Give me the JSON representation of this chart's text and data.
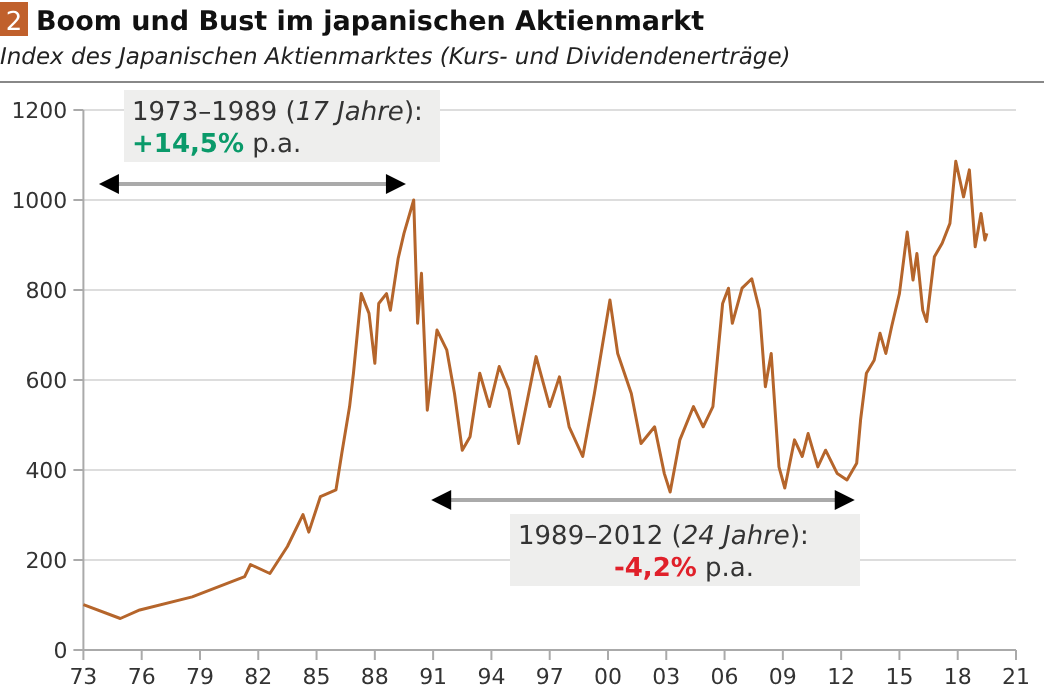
{
  "chart_data": {
    "type": "line",
    "title": "2 Boom und Bust im japanischen Aktienmarkt",
    "subtitle": "Index des Japanischen Aktienmarktes (Kurs- und Dividendenerträge)",
    "x": [
      1973.0,
      1974.9,
      1975.9,
      1978.6,
      1981.3,
      1981.6,
      1982.6,
      1983.5,
      1984.3,
      1984.6,
      1985.2,
      1986.0,
      1986.3,
      1986.7,
      1986.9,
      1987.3,
      1987.7,
      1988.0,
      1988.2,
      1988.6,
      1988.8,
      1989.2,
      1989.5,
      1990.0,
      1990.2,
      1990.4,
      1990.7,
      1991.2,
      1991.7,
      1992.1,
      1992.5,
      1992.9,
      1993.4,
      1993.9,
      1994.4,
      1994.9,
      1995.4,
      1996.3,
      1997.0,
      1997.5,
      1998.0,
      1998.7,
      1999.3,
      2000.1,
      2000.5,
      2001.2,
      2001.7,
      2002.4,
      2002.9,
      2003.2,
      2003.7,
      2004.4,
      2004.9,
      2005.4,
      2005.9,
      2006.2,
      2006.4,
      2006.9,
      2007.4,
      2007.8,
      2008.1,
      2008.4,
      2008.8,
      2009.1,
      2009.6,
      2010.0,
      2010.3,
      2010.8,
      2011.2,
      2011.8,
      2012.3,
      2012.8,
      2013.0,
      2013.3,
      2013.7,
      2014.0,
      2014.3,
      2014.6,
      2015.0,
      2015.4,
      2015.7,
      2015.9,
      2016.2,
      2016.4,
      2016.8,
      2017.2,
      2017.6,
      2017.9,
      2018.3,
      2018.6,
      2018.9,
      2019.2,
      2019.4,
      2019.5
    ],
    "series": [
      {
        "color": "#b5652b",
        "values": [
          101,
          70,
          89,
          118,
          163,
          190,
          170,
          230,
          301,
          262,
          341,
          356,
          437,
          541,
          615,
          792,
          748,
          637,
          770,
          792,
          755,
          870,
          926,
          1000,
          726,
          837,
          533,
          711,
          667,
          570,
          444,
          474,
          615,
          541,
          630,
          578,
          459,
          652,
          541,
          607,
          496,
          430,
          570,
          778,
          659,
          570,
          459,
          496,
          392,
          351,
          467,
          541,
          496,
          541,
          770,
          804,
          726,
          804,
          825,
          755,
          585,
          659,
          407,
          360,
          467,
          430,
          481,
          407,
          444,
          392,
          378,
          415,
          511,
          615,
          644,
          704,
          659,
          719,
          792,
          929,
          822,
          881,
          755,
          730,
          874,
          904,
          948,
          1086,
          1007,
          1067,
          896,
          970,
          911,
          926
        ]
      }
    ],
    "xlim": [
      1973,
      2021
    ],
    "xticks": [
      {
        "value": 1973,
        "label": "73"
      },
      {
        "value": 1976,
        "label": "76"
      },
      {
        "value": 1979,
        "label": "79"
      },
      {
        "value": 1982,
        "label": "82"
      },
      {
        "value": 1985,
        "label": "85"
      },
      {
        "value": 1988,
        "label": "88"
      },
      {
        "value": 1991,
        "label": "91"
      },
      {
        "value": 1994,
        "label": "94"
      },
      {
        "value": 1997,
        "label": "97"
      },
      {
        "value": 2000,
        "label": "00"
      },
      {
        "value": 2003,
        "label": "03"
      },
      {
        "value": 2006,
        "label": "06"
      },
      {
        "value": 2009,
        "label": "09"
      },
      {
        "value": 2012,
        "label": "12"
      },
      {
        "value": 2015,
        "label": "15"
      },
      {
        "value": 2018,
        "label": "18"
      },
      {
        "value": 2021,
        "label": "21"
      }
    ],
    "ylim": [
      0,
      1200
    ],
    "yticks": [
      0,
      200,
      400,
      600,
      800,
      1000,
      1200
    ],
    "grid": "y",
    "annotations": [
      "1973–1989 (17 Jahre):",
      "+14,5% p.a.",
      "1989–2012 (24 Jahre):",
      "-4,2% p.a."
    ]
  }
}
